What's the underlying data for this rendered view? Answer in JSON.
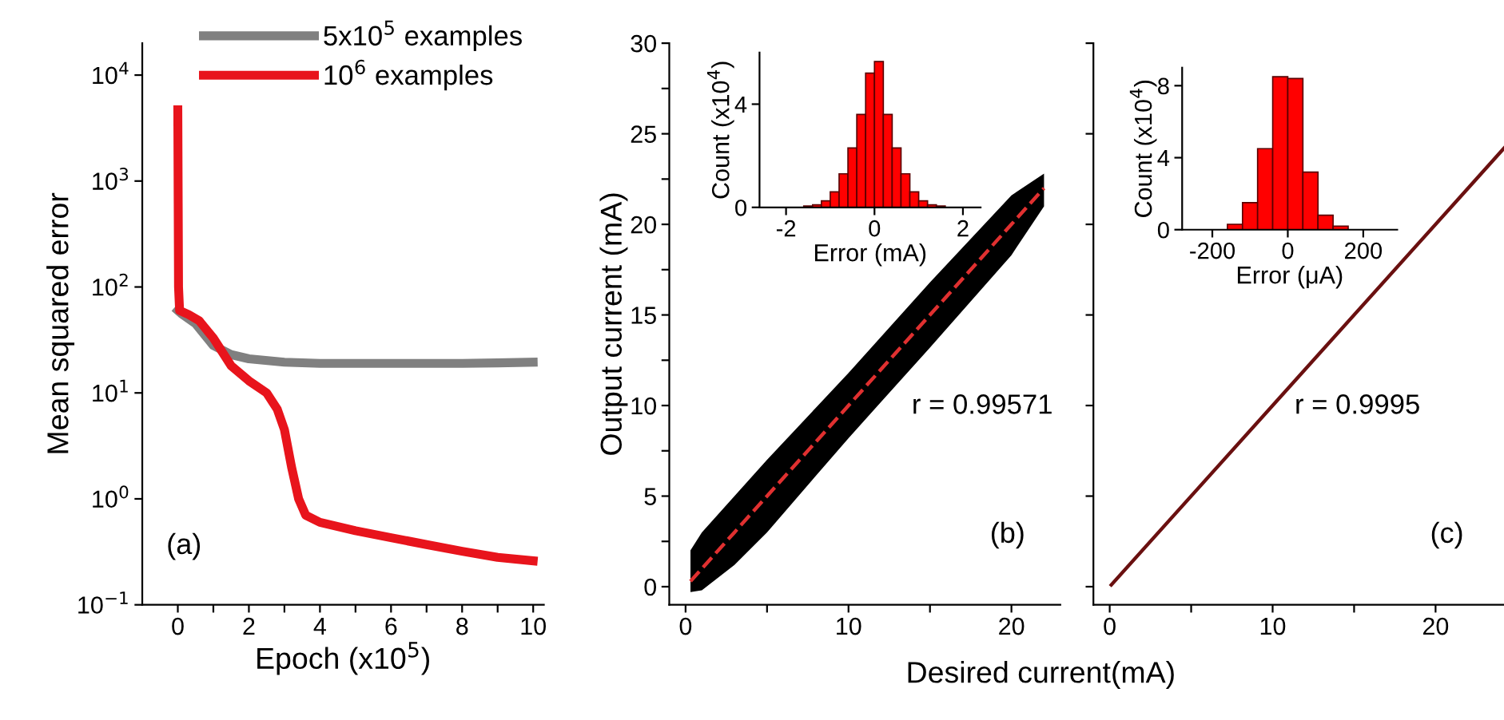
{
  "chart_data": [
    {
      "type": "line",
      "xlabel": "Epoch (x10$^{5}$)",
      "ylabel": "Mean squared error",
      "log": "y",
      "legend": "top",
      "annotations": [
        "(a)"
      ],
      "xlim": [
        -1,
        10.3
      ],
      "ylim": [
        0.1,
        20000
      ],
      "xticks": [
        0,
        {
          "value": 1,
          "label": null
        },
        2,
        {
          "value": 3,
          "label": null
        },
        4,
        {
          "value": 5,
          "label": null
        },
        6,
        {
          "value": 7,
          "label": null
        },
        8,
        {
          "value": 9,
          "label": null
        },
        10
      ],
      "yticks": [
        {
          "value": 0.1,
          "label": "10$^{−1}$"
        },
        {
          "value": 1,
          "label": "10$^{0}$"
        },
        {
          "value": 10,
          "label": "10$^{1}$"
        },
        {
          "value": 100,
          "label": "10$^{2}$"
        },
        {
          "value": 1000,
          "label": "10$^{3}$"
        },
        {
          "value": 10000,
          "label": "10$^{4}$"
        }
      ],
      "series": [
        {
          "name": "5x10$^{5}$ examples",
          "color": "#808080",
          "x": [
            0,
            0.1,
            0.5,
            1,
            1.5,
            2,
            3,
            4,
            5,
            6,
            7,
            8,
            9,
            10
          ],
          "values": [
            60,
            56,
            45,
            28,
            23,
            21,
            19.5,
            19,
            19,
            19,
            19,
            19,
            19.2,
            19.5
          ]
        },
        {
          "name": "10$^{6}$ examples",
          "color": "#e8141c",
          "x": [
            0,
            0.02,
            0.05,
            0.3,
            0.6,
            1,
            1.5,
            2,
            2.5,
            2.8,
            3,
            3.2,
            3.4,
            3.6,
            4,
            5,
            6,
            7,
            8,
            9,
            10
          ],
          "values": [
            4700,
            100,
            60,
            55,
            48,
            33,
            18,
            13,
            10,
            7,
            4.5,
            2,
            1.0,
            0.7,
            0.6,
            0.5,
            0.43,
            0.37,
            0.32,
            0.28,
            0.26
          ]
        }
      ]
    },
    {
      "type": "line",
      "ylabel": "Output current (mA)",
      "xlabel": "Desired current(mA)",
      "annotations": [
        "r = 0.99571",
        "(b)"
      ],
      "xlim": [
        -1,
        23
      ],
      "ylim": [
        -1,
        30
      ],
      "xticks": [
        0,
        {
          "value": 5,
          "label": null
        },
        10,
        {
          "value": 15,
          "label": null
        },
        20
      ],
      "yticks": [
        0,
        {
          "value": 2.5,
          "label": null
        },
        5,
        {
          "value": 7.5,
          "label": null
        },
        10,
        {
          "value": 12.5,
          "label": null
        },
        15,
        {
          "value": 17.5,
          "label": null
        },
        20,
        {
          "value": 22.5,
          "label": null
        },
        25,
        {
          "value": 27.5,
          "label": null
        },
        30
      ],
      "series": [
        {
          "color": "#e03030",
          "line_style": "dashed",
          "x": [
            0.3,
            1,
            3,
            5,
            10,
            15,
            20,
            22
          ],
          "values": [
            0.3,
            1,
            3,
            5,
            10,
            15,
            20,
            22
          ],
          "lower": [
            -0.3,
            -0.2,
            1.2,
            3,
            8.2,
            13.2,
            18.3,
            21
          ],
          "upper": [
            2,
            3,
            5,
            7,
            11.8,
            16.8,
            21.6,
            22.8
          ]
        }
      ]
    },
    {
      "type": "histogram",
      "xlabel": "Error (mA)",
      "ylabel": "Count (x10$^{4}$)",
      "color": "#ff0000",
      "xlim": [
        -2.6,
        2.4
      ],
      "ylim": [
        0,
        6
      ],
      "xticks": [
        -2,
        0,
        2
      ],
      "yticks": [
        0,
        4
      ],
      "bins": [
        -1.6,
        -1.4,
        -1.2,
        -1.0,
        -0.8,
        -0.6,
        -0.4,
        -0.2,
        0,
        0.2,
        0.4,
        0.6,
        0.8,
        1.0,
        1.2,
        1.4,
        1.6
      ],
      "values": [
        0.05,
        0.1,
        0.25,
        0.6,
        1.3,
        2.3,
        3.6,
        5.2,
        5.65,
        3.6,
        2.3,
        1.3,
        0.6,
        0.25,
        0.1,
        0.05
      ]
    },
    {
      "type": "line",
      "annotations": [
        "r = 0.9995",
        "(c)"
      ],
      "tick_labels": "x",
      "xlim": [
        -1,
        24.2
      ],
      "ylim": [
        -1,
        30
      ],
      "xticks": [
        0,
        {
          "value": 5,
          "label": null
        },
        10,
        {
          "value": 15,
          "label": null
        },
        20
      ],
      "yticks": [
        0,
        {
          "value": 5,
          "label": null
        },
        {
          "value": 10,
          "label": null
        },
        {
          "value": 15,
          "label": null
        },
        {
          "value": 20,
          "label": null
        },
        {
          "value": 25,
          "label": null
        },
        {
          "value": 30,
          "label": null
        }
      ],
      "series": [
        {
          "color": "#6a1010",
          "x": [
            0.1,
            24.2
          ],
          "values": [
            0.1,
            24.2
          ]
        }
      ]
    },
    {
      "type": "histogram",
      "xlabel": "Error (μA)",
      "ylabel": "Count (x10$^{4}$)",
      "color": "#ff0000",
      "xlim": [
        -280,
        290
      ],
      "ylim": [
        0,
        9
      ],
      "xticks": [
        -200,
        0,
        200
      ],
      "yticks": [
        0,
        4,
        8
      ],
      "bins": [
        -160,
        -120,
        -80,
        -40,
        0,
        40,
        80,
        120,
        160
      ],
      "values": [
        0.3,
        1.5,
        4.5,
        8.5,
        8.4,
        3.2,
        0.8,
        0.2
      ]
    }
  ]
}
